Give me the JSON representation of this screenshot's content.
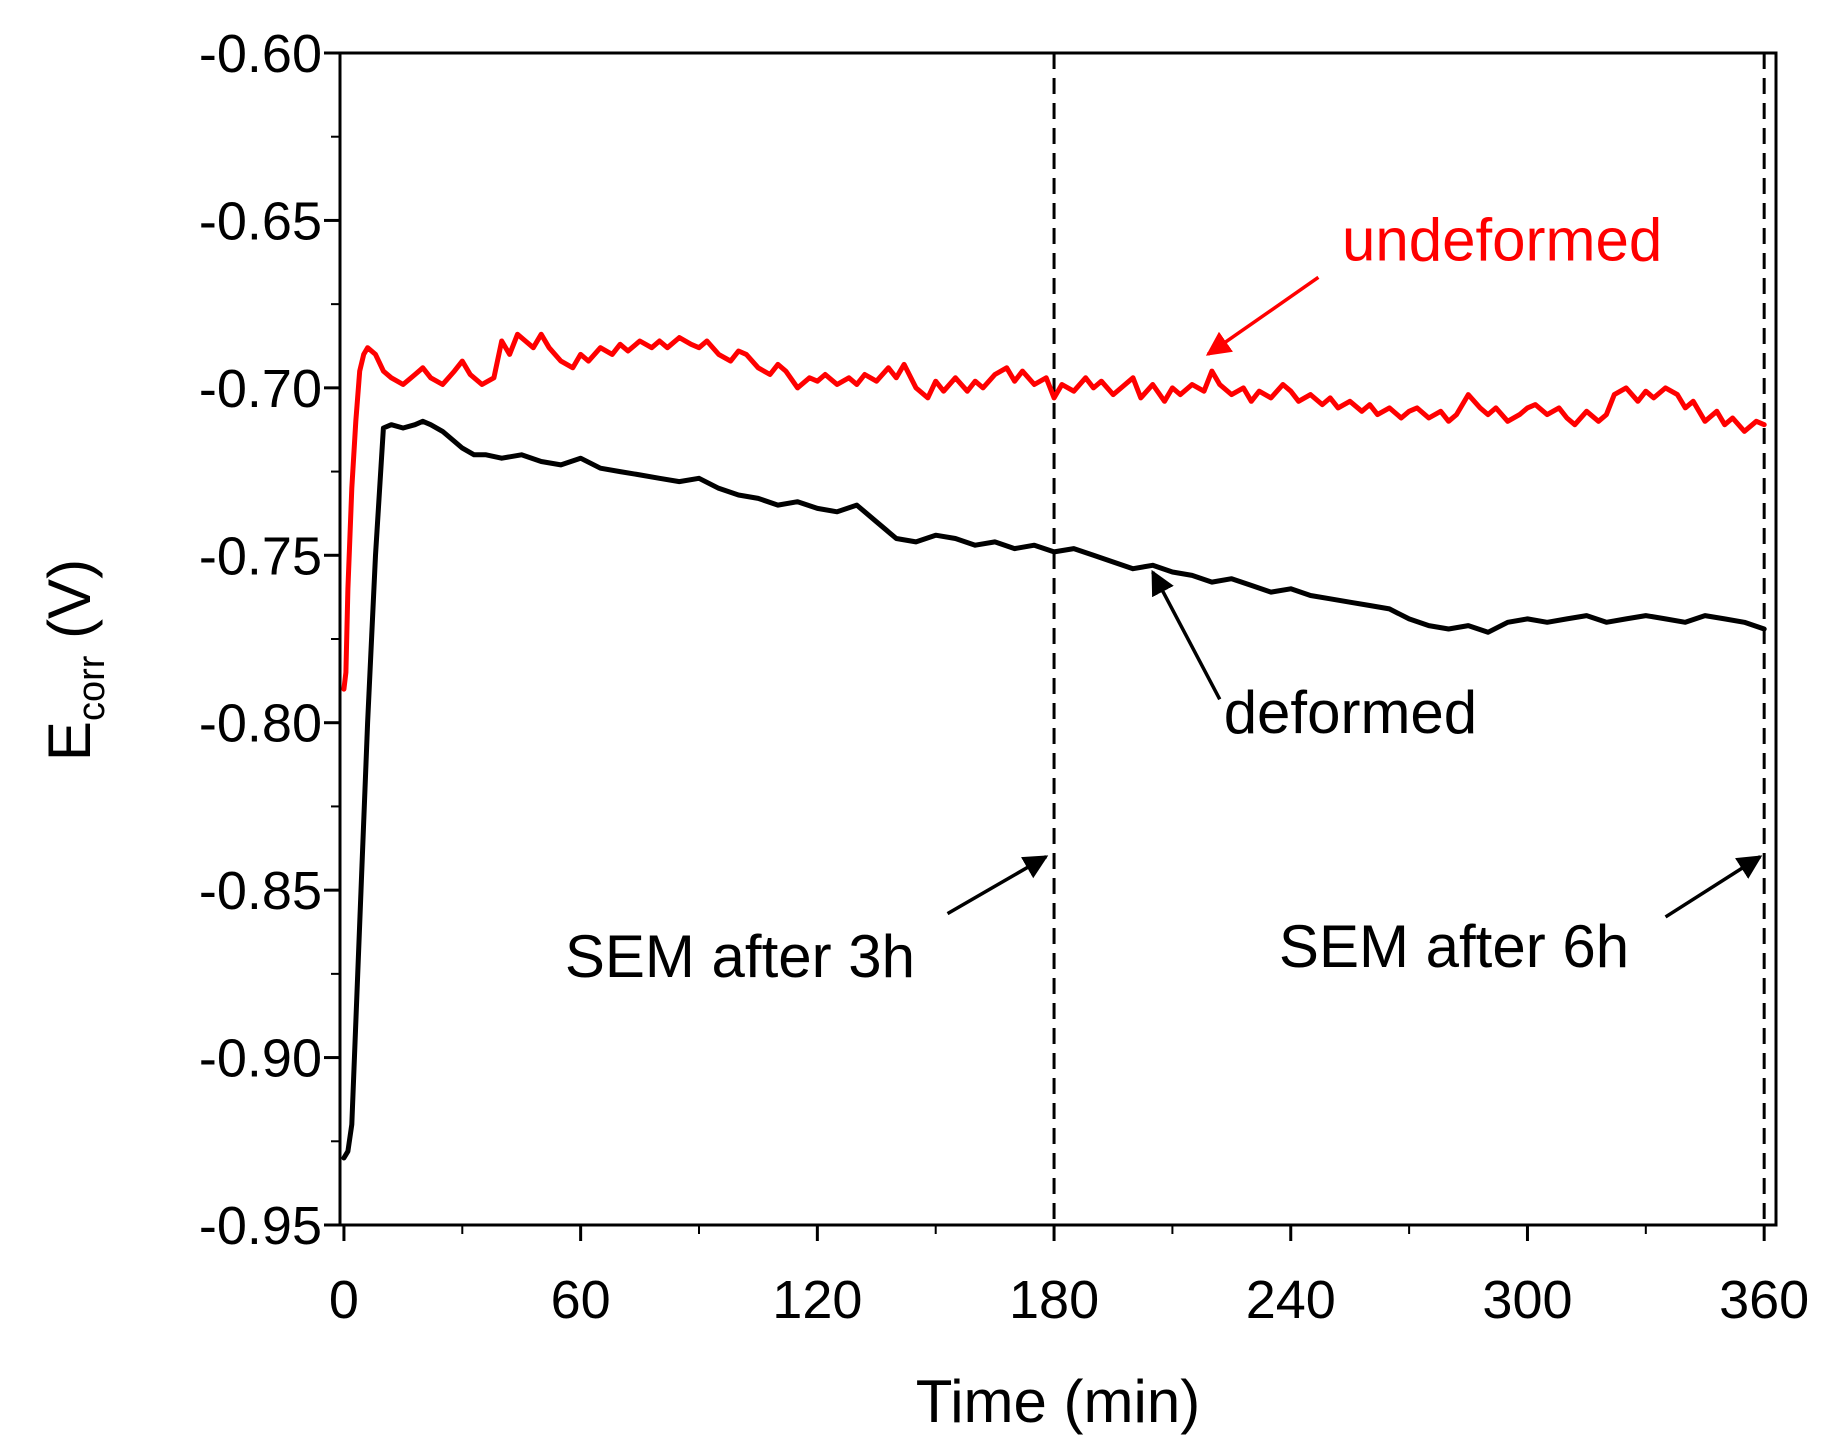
{
  "chart_data": {
    "type": "line",
    "title": "",
    "xlabel": "Time (min)",
    "ylabel": {
      "main": "E",
      "subscript": "corr",
      "unit": " (V)"
    },
    "xlim": [
      -1,
      363
    ],
    "ylim": [
      -0.95,
      -0.6
    ],
    "xticks": [
      0,
      60,
      120,
      180,
      240,
      300,
      360
    ],
    "xtick_labels": [
      "0",
      "60",
      "120",
      "180",
      "240",
      "300",
      "360"
    ],
    "yticks": [
      -0.95,
      -0.9,
      -0.85,
      -0.8,
      -0.75,
      -0.7,
      -0.65,
      -0.6
    ],
    "ytick_labels": [
      "-0.95",
      "-0.90",
      "-0.85",
      "-0.80",
      "-0.75",
      "-0.70",
      "-0.65",
      "-0.60"
    ],
    "grid": false,
    "series": [
      {
        "name": "undeformed",
        "color": "#ff0000",
        "x": [
          0,
          0.5,
          1,
          2,
          3,
          4,
          5,
          6,
          8,
          10,
          12,
          15,
          18,
          20,
          22,
          25,
          28,
          30,
          32,
          35,
          38,
          40,
          42,
          44,
          46,
          48,
          50,
          52,
          55,
          58,
          60,
          62,
          65,
          68,
          70,
          72,
          75,
          78,
          80,
          82,
          85,
          88,
          90,
          92,
          95,
          98,
          100,
          102,
          105,
          108,
          110,
          112,
          115,
          118,
          120,
          122,
          125,
          128,
          130,
          132,
          135,
          138,
          140,
          142,
          145,
          148,
          150,
          152,
          155,
          158,
          160,
          162,
          165,
          168,
          170,
          172,
          175,
          178,
          180,
          182,
          185,
          188,
          190,
          192,
          195,
          198,
          200,
          202,
          205,
          208,
          210,
          212,
          215,
          218,
          220,
          222,
          225,
          228,
          230,
          232,
          235,
          238,
          240,
          242,
          245,
          248,
          250,
          252,
          255,
          258,
          260,
          262,
          265,
          268,
          270,
          272,
          275,
          278,
          280,
          282,
          285,
          288,
          290,
          292,
          295,
          298,
          300,
          302,
          305,
          308,
          310,
          312,
          315,
          318,
          320,
          322,
          325,
          328,
          330,
          332,
          335,
          338,
          340,
          342,
          345,
          348,
          350,
          352,
          355,
          358,
          360
        ],
        "y": [
          -0.79,
          -0.785,
          -0.76,
          -0.73,
          -0.71,
          -0.695,
          -0.69,
          -0.688,
          -0.69,
          -0.695,
          -0.697,
          -0.699,
          -0.696,
          -0.694,
          -0.697,
          -0.699,
          -0.695,
          -0.692,
          -0.696,
          -0.699,
          -0.697,
          -0.686,
          -0.69,
          -0.684,
          -0.686,
          -0.688,
          -0.684,
          -0.688,
          -0.692,
          -0.694,
          -0.69,
          -0.692,
          -0.688,
          -0.69,
          -0.687,
          -0.689,
          -0.686,
          -0.688,
          -0.686,
          -0.688,
          -0.685,
          -0.687,
          -0.688,
          -0.686,
          -0.69,
          -0.692,
          -0.689,
          -0.69,
          -0.694,
          -0.696,
          -0.693,
          -0.695,
          -0.7,
          -0.697,
          -0.698,
          -0.696,
          -0.699,
          -0.697,
          -0.699,
          -0.696,
          -0.698,
          -0.694,
          -0.697,
          -0.693,
          -0.7,
          -0.703,
          -0.698,
          -0.701,
          -0.697,
          -0.701,
          -0.698,
          -0.7,
          -0.696,
          -0.694,
          -0.698,
          -0.695,
          -0.699,
          -0.697,
          -0.703,
          -0.699,
          -0.701,
          -0.697,
          -0.7,
          -0.698,
          -0.702,
          -0.699,
          -0.697,
          -0.703,
          -0.699,
          -0.704,
          -0.7,
          -0.702,
          -0.699,
          -0.701,
          -0.695,
          -0.699,
          -0.702,
          -0.7,
          -0.704,
          -0.701,
          -0.703,
          -0.699,
          -0.701,
          -0.704,
          -0.702,
          -0.705,
          -0.703,
          -0.706,
          -0.704,
          -0.707,
          -0.705,
          -0.708,
          -0.706,
          -0.709,
          -0.707,
          -0.706,
          -0.709,
          -0.707,
          -0.71,
          -0.708,
          -0.702,
          -0.706,
          -0.708,
          -0.706,
          -0.71,
          -0.708,
          -0.706,
          -0.705,
          -0.708,
          -0.706,
          -0.709,
          -0.711,
          -0.707,
          -0.71,
          -0.708,
          -0.702,
          -0.7,
          -0.704,
          -0.701,
          -0.703,
          -0.7,
          -0.702,
          -0.706,
          -0.704,
          -0.71,
          -0.707,
          -0.711,
          -0.709,
          -0.713,
          -0.71,
          -0.711
        ]
      },
      {
        "name": "deformed",
        "color": "#000000",
        "x": [
          0,
          1,
          2,
          4,
          6,
          8,
          10,
          12,
          15,
          18,
          20,
          22,
          25,
          28,
          30,
          33,
          36,
          40,
          45,
          50,
          55,
          60,
          65,
          70,
          75,
          80,
          85,
          90,
          95,
          100,
          105,
          110,
          115,
          120,
          125,
          130,
          135,
          140,
          145,
          150,
          155,
          160,
          165,
          170,
          175,
          180,
          185,
          190,
          195,
          200,
          205,
          210,
          215,
          220,
          225,
          230,
          235,
          240,
          245,
          250,
          255,
          260,
          265,
          270,
          275,
          280,
          285,
          290,
          295,
          300,
          305,
          310,
          315,
          320,
          325,
          330,
          335,
          340,
          345,
          350,
          355,
          360
        ],
        "y": [
          -0.93,
          -0.928,
          -0.92,
          -0.86,
          -0.8,
          -0.75,
          -0.712,
          -0.711,
          -0.712,
          -0.711,
          -0.71,
          -0.711,
          -0.713,
          -0.716,
          -0.718,
          -0.72,
          -0.72,
          -0.721,
          -0.72,
          -0.722,
          -0.723,
          -0.721,
          -0.724,
          -0.725,
          -0.726,
          -0.727,
          -0.728,
          -0.727,
          -0.73,
          -0.732,
          -0.733,
          -0.735,
          -0.734,
          -0.736,
          -0.737,
          -0.735,
          -0.74,
          -0.745,
          -0.746,
          -0.744,
          -0.745,
          -0.747,
          -0.746,
          -0.748,
          -0.747,
          -0.749,
          -0.748,
          -0.75,
          -0.752,
          -0.754,
          -0.753,
          -0.755,
          -0.756,
          -0.758,
          -0.757,
          -0.759,
          -0.761,
          -0.76,
          -0.762,
          -0.763,
          -0.764,
          -0.765,
          -0.766,
          -0.769,
          -0.771,
          -0.772,
          -0.771,
          -0.773,
          -0.77,
          -0.769,
          -0.77,
          -0.769,
          -0.768,
          -0.77,
          -0.769,
          -0.768,
          -0.769,
          -0.77,
          -0.768,
          -0.769,
          -0.77,
          -0.772
        ]
      }
    ],
    "vlines": [
      {
        "x": 180,
        "style": "dashed",
        "color": "#000000"
      },
      {
        "x": 360,
        "style": "dashed",
        "color": "#000000"
      }
    ],
    "annotations": [
      {
        "name": "annotation-undeformed",
        "text": "undeformed",
        "color": "#ff0000",
        "at": [
          219,
          -0.69
        ],
        "text_pos": [
          253,
          -0.662
        ]
      },
      {
        "name": "annotation-deformed",
        "text": "deformed",
        "color": "#000000",
        "at": [
          205,
          -0.755
        ],
        "text_pos": [
          223,
          -0.803
        ]
      },
      {
        "name": "annotation-sem-3h",
        "text": "SEM after 3h",
        "color": "#000000",
        "at": [
          178,
          -0.84
        ],
        "text_pos": [
          56,
          -0.876
        ]
      },
      {
        "name": "annotation-sem-6h",
        "text": "SEM after 6h",
        "color": "#000000",
        "at": [
          359,
          -0.84
        ],
        "text_pos": [
          237,
          -0.873
        ]
      }
    ]
  }
}
